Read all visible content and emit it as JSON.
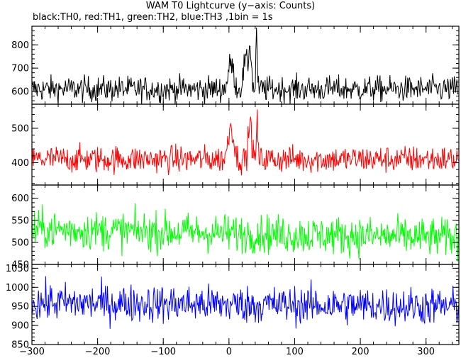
{
  "title": "WAM T0 Lightcurve (y−axis: Counts)",
  "subtitle": "black:TH0, red:TH1, green:TH2, blue:TH3 ,1bin = 1s",
  "chart_data": {
    "type": "line",
    "x_range": [
      -300,
      350
    ],
    "x_ticks": [
      -300,
      -200,
      -100,
      0,
      100,
      200,
      300
    ],
    "x_tick_labels": [
      "−300",
      "−200",
      "−100",
      "0",
      "100",
      "200",
      "300"
    ],
    "panels": [
      {
        "series_name": "TH0",
        "color": "#000000",
        "ylim": [
          545,
          880
        ],
        "y_ticks": [
          600,
          700,
          800
        ],
        "baseline": 610,
        "noise": 28,
        "features": [
          {
            "t": 3,
            "height": 110,
            "width": 4
          },
          {
            "t": 25,
            "height": 120,
            "width": 3
          },
          {
            "t": 32,
            "height": 190,
            "width": 2
          },
          {
            "t": 42,
            "height": 290,
            "width": 0.8
          }
        ]
      },
      {
        "series_name": "TH1",
        "color": "#ff0000",
        "ylim": [
          335,
          570
        ],
        "y_ticks": [
          400,
          500
        ],
        "baseline": 410,
        "noise": 20,
        "features": [
          {
            "t": 3,
            "height": 100,
            "width": 4
          },
          {
            "t": 32,
            "height": 110,
            "width": 2.5
          },
          {
            "t": 43,
            "height": 150,
            "width": 0.8
          }
        ]
      },
      {
        "series_name": "TH2",
        "color": "#00ff00",
        "ylim": [
          450,
          630
        ],
        "y_ticks": [
          450,
          500,
          550,
          600
        ],
        "baseline": 530,
        "noise": 22,
        "trend": -20,
        "features": []
      },
      {
        "series_name": "TH3",
        "color": "#0000ff",
        "ylim": [
          850,
          1060
        ],
        "y_ticks": [
          850,
          900,
          950,
          1000,
          1050
        ],
        "baseline": 960,
        "noise": 25,
        "trend": -10,
        "features": []
      }
    ]
  }
}
